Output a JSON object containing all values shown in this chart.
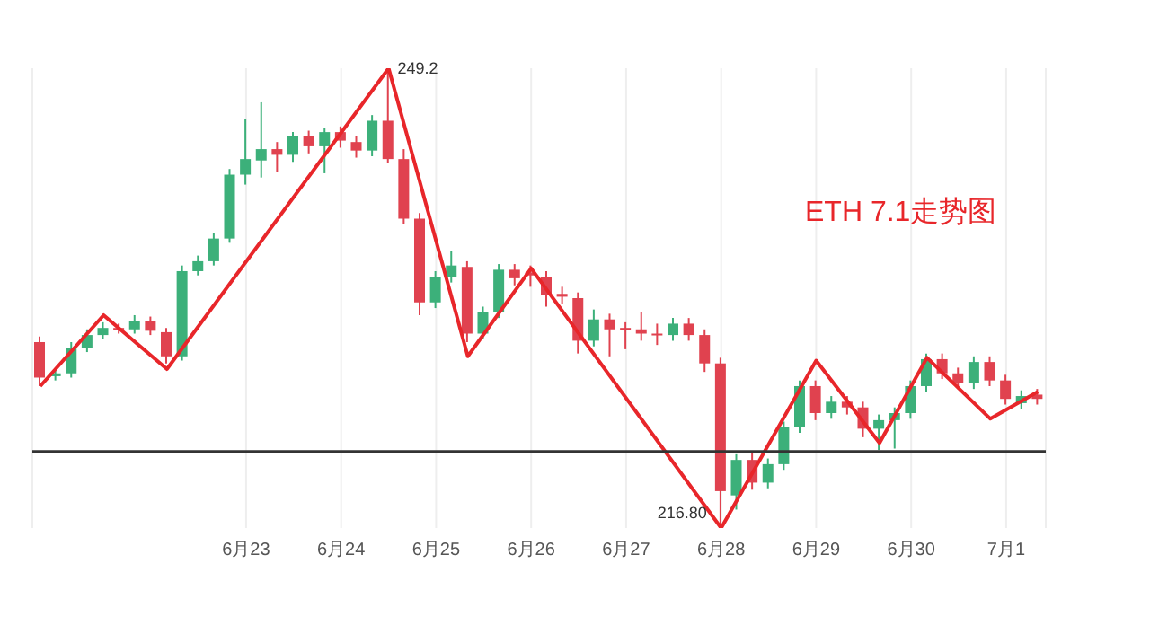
{
  "chart_data": {
    "type": "candlestick",
    "categories": [
      null,
      null,
      null,
      null,
      null,
      null,
      null,
      null,
      null,
      null,
      null,
      null,
      null,
      "6月23",
      null,
      null,
      null,
      null,
      null,
      "6月24",
      null,
      null,
      null,
      null,
      null,
      "6月25",
      null,
      null,
      null,
      null,
      null,
      "6月26",
      null,
      null,
      null,
      null,
      null,
      "6月27",
      null,
      null,
      null,
      null,
      null,
      "6月28",
      null,
      null,
      null,
      null,
      null,
      "6月29",
      null,
      null,
      null,
      null,
      null,
      "6月30",
      null,
      null,
      null,
      null,
      null,
      "7月1",
      null,
      null
    ],
    "ohlc": [
      [
        229.9,
        230.3,
        226.8,
        227.4
      ],
      [
        227.5,
        228.0,
        227.2,
        227.7
      ],
      [
        227.7,
        229.9,
        227.4,
        229.5
      ],
      [
        229.5,
        230.8,
        229.2,
        230.4
      ],
      [
        230.4,
        231.3,
        230.1,
        230.9
      ],
      [
        230.9,
        231.2,
        230.5,
        230.8
      ],
      [
        230.8,
        231.8,
        230.5,
        231.4
      ],
      [
        231.4,
        231.7,
        230.4,
        230.7
      ],
      [
        230.6,
        230.9,
        228.4,
        228.9
      ],
      [
        228.9,
        235.3,
        228.6,
        234.9
      ],
      [
        234.9,
        236.0,
        234.6,
        235.6
      ],
      [
        235.6,
        237.6,
        235.3,
        237.2
      ],
      [
        237.2,
        242.1,
        236.9,
        241.7
      ],
      [
        241.7,
        245.6,
        241.0,
        242.8
      ],
      [
        242.7,
        246.8,
        241.5,
        243.5
      ],
      [
        243.5,
        244.0,
        241.9,
        243.1
      ],
      [
        243.1,
        244.7,
        242.6,
        244.4
      ],
      [
        244.4,
        244.8,
        243.2,
        243.7
      ],
      [
        243.7,
        245.0,
        241.8,
        244.7
      ],
      [
        244.7,
        245.1,
        243.6,
        244.1
      ],
      [
        244.0,
        244.4,
        242.9,
        243.4
      ],
      [
        243.4,
        245.9,
        243.0,
        245.5
      ],
      [
        245.5,
        249.2,
        242.5,
        242.8
      ],
      [
        242.8,
        243.5,
        238.2,
        238.6
      ],
      [
        238.6,
        239.0,
        231.8,
        232.7
      ],
      [
        232.7,
        234.9,
        232.3,
        234.5
      ],
      [
        234.5,
        236.3,
        234.1,
        235.3
      ],
      [
        235.2,
        235.6,
        229.9,
        230.5
      ],
      [
        230.5,
        232.4,
        230.1,
        232.0
      ],
      [
        232.0,
        235.4,
        231.6,
        235.0
      ],
      [
        235.0,
        235.4,
        233.9,
        234.4
      ],
      [
        234.8,
        235.3,
        233.8,
        234.6
      ],
      [
        234.5,
        234.9,
        232.4,
        233.2
      ],
      [
        233.3,
        233.8,
        232.6,
        233.1
      ],
      [
        233.0,
        233.4,
        229.1,
        230.0
      ],
      [
        230.0,
        232.2,
        229.6,
        231.5
      ],
      [
        231.5,
        231.9,
        228.9,
        230.8
      ],
      [
        230.9,
        231.3,
        229.4,
        230.8
      ],
      [
        230.8,
        232.0,
        230.0,
        230.5
      ],
      [
        230.5,
        231.2,
        229.7,
        230.4
      ],
      [
        230.4,
        231.6,
        230.0,
        231.2
      ],
      [
        231.2,
        231.6,
        230.0,
        230.4
      ],
      [
        230.4,
        230.8,
        227.8,
        228.4
      ],
      [
        228.4,
        228.8,
        216.8,
        219.4
      ],
      [
        219.1,
        222.0,
        218.1,
        221.6
      ],
      [
        221.6,
        222.2,
        219.5,
        220.0
      ],
      [
        220.0,
        221.7,
        219.6,
        221.3
      ],
      [
        221.3,
        224.3,
        220.9,
        223.9
      ],
      [
        223.9,
        227.2,
        223.5,
        226.8
      ],
      [
        226.8,
        227.2,
        224.4,
        224.9
      ],
      [
        224.9,
        226.1,
        224.5,
        225.7
      ],
      [
        225.7,
        226.1,
        224.8,
        225.3
      ],
      [
        225.3,
        225.7,
        223.2,
        223.8
      ],
      [
        223.8,
        224.8,
        222.3,
        224.4
      ],
      [
        224.4,
        225.3,
        222.4,
        224.9
      ],
      [
        224.9,
        227.2,
        224.5,
        226.8
      ],
      [
        226.8,
        229.1,
        226.4,
        228.7
      ],
      [
        228.7,
        229.1,
        227.3,
        227.7
      ],
      [
        227.7,
        228.1,
        226.6,
        227.0
      ],
      [
        227.0,
        228.9,
        226.6,
        228.5
      ],
      [
        228.5,
        228.9,
        226.8,
        227.2
      ],
      [
        227.2,
        227.6,
        225.5,
        225.9
      ],
      [
        225.6,
        226.5,
        225.2,
        226.1
      ],
      [
        226.2,
        226.6,
        225.5,
        225.9
      ]
    ],
    "colors": [
      "#e0424f",
      "#3cb07a",
      "#3cb07a",
      "#3cb07a",
      "#3cb07a",
      "#e0424f",
      "#3cb07a",
      "#e0424f",
      "#e0424f",
      "#3cb07a",
      "#3cb07a",
      "#3cb07a",
      "#3cb07a",
      "#3cb07a",
      "#3cb07a",
      "#e0424f",
      "#3cb07a",
      "#e0424f",
      "#3cb07a",
      "#e0424f",
      "#e0424f",
      "#3cb07a",
      "#e0424f",
      "#e0424f",
      "#e0424f",
      "#3cb07a",
      "#3cb07a",
      "#e0424f",
      "#3cb07a",
      "#3cb07a",
      "#e0424f",
      "#e0424f",
      "#e0424f",
      "#e0424f",
      "#e0424f",
      "#3cb07a",
      "#e0424f",
      "#e0424f",
      "#e0424f",
      "#e0424f",
      "#3cb07a",
      "#e0424f",
      "#e0424f",
      "#e0424f",
      "#3cb07a",
      "#e0424f",
      "#3cb07a",
      "#3cb07a",
      "#3cb07a",
      "#e0424f",
      "#3cb07a",
      "#e0424f",
      "#e0424f",
      "#3cb07a",
      "#3cb07a",
      "#3cb07a",
      "#3cb07a",
      "#e0424f",
      "#e0424f",
      "#3cb07a",
      "#e0424f",
      "#e0424f",
      "#3cb07a",
      "#e0424f"
    ],
    "series": [
      {
        "type": "line",
        "color": "#e8262a",
        "values": [
          226.8,
          null,
          null,
          null,
          231.8,
          null,
          null,
          null,
          228.0,
          null,
          null,
          null,
          null,
          null,
          null,
          null,
          null,
          null,
          null,
          null,
          null,
          null,
          249.2,
          null,
          null,
          null,
          null,
          228.9,
          null,
          null,
          null,
          235.1,
          null,
          null,
          null,
          null,
          null,
          null,
          null,
          null,
          null,
          null,
          null,
          216.8,
          null,
          null,
          null,
          null,
          null,
          228.6,
          null,
          null,
          null,
          222.8,
          null,
          null,
          228.8,
          null,
          null,
          null,
          224.5,
          null,
          null,
          226.4
        ]
      }
    ],
    "tick_labels": "x",
    "grid": "x",
    "ref_lines": [
      {
        "axis": "y",
        "value": 222.2,
        "color": "#333333"
      }
    ],
    "annotations": [
      "ETH 7.1走势图",
      "249.2",
      "216.80"
    ]
  }
}
